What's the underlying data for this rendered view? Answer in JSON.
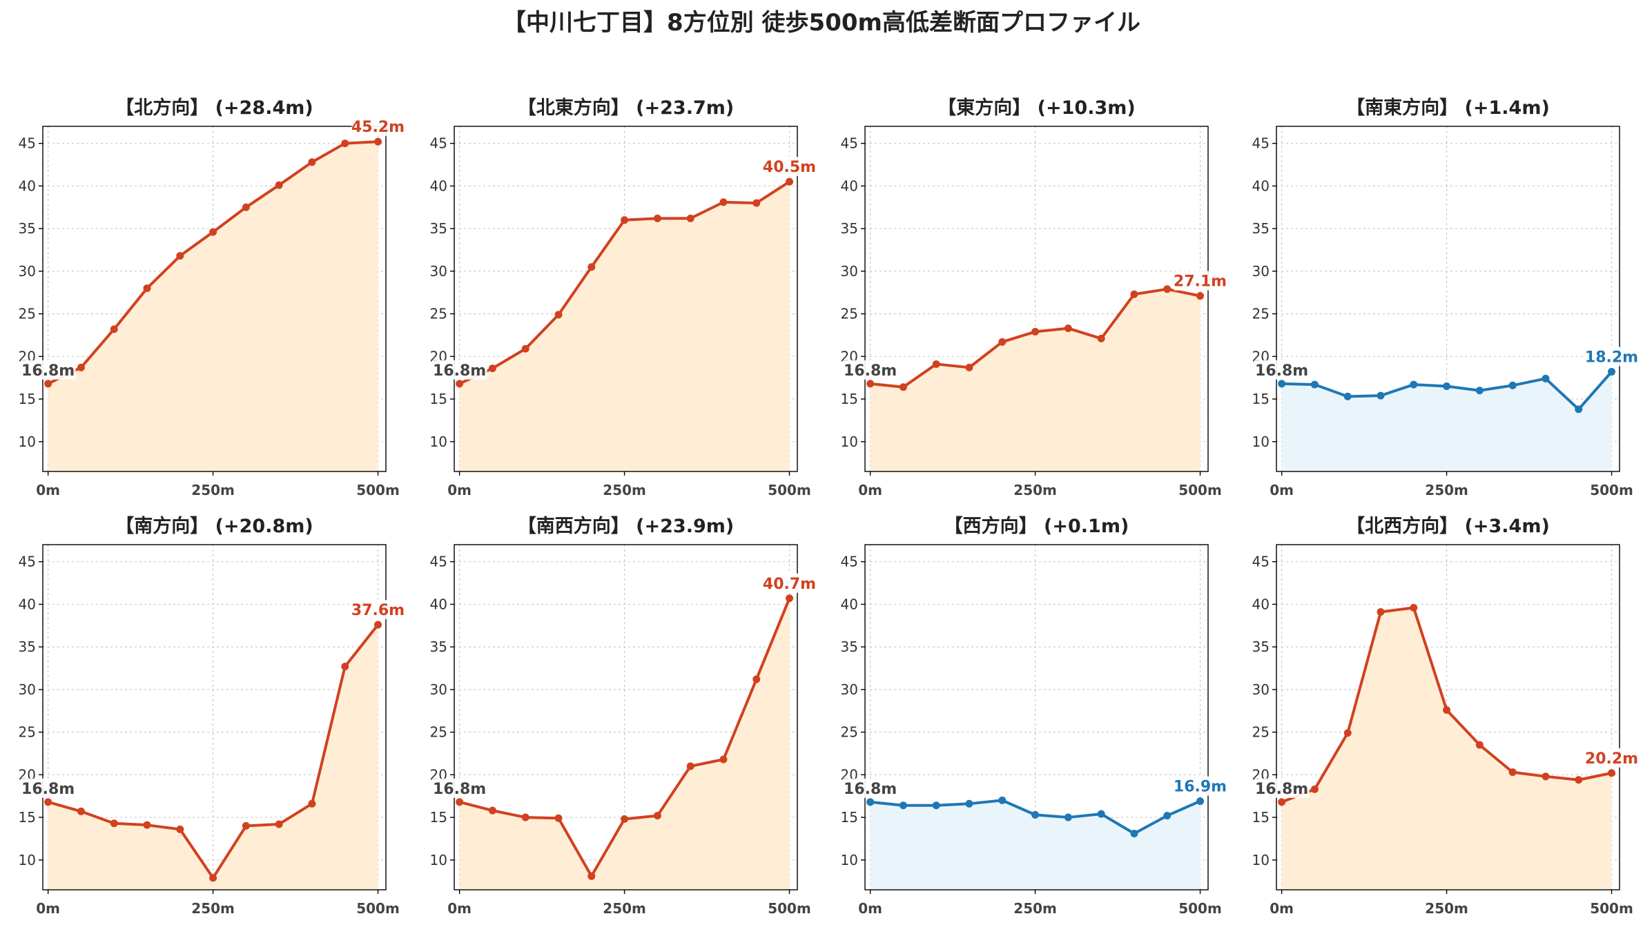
{
  "title": "【中川七丁目】8方位別 徒歩500m高低差断面プロファイル",
  "colors": {
    "up": "#D14120",
    "up_fill": "#FFEED5",
    "flat": "#1F77B4",
    "flat_fill": "#EAF5FB",
    "start_label": "#444444"
  },
  "chart_data": [
    {
      "type": "area",
      "title": "【北方向】 (+28.4m)",
      "x": [
        0,
        50,
        100,
        150,
        200,
        250,
        300,
        350,
        400,
        450,
        500
      ],
      "values": [
        16.8,
        18.7,
        23.2,
        28.0,
        31.8,
        34.6,
        37.5,
        40.1,
        42.8,
        45.0,
        45.2
      ],
      "start_label": "16.8m",
      "end_label": "45.2m",
      "color_key": "up",
      "xticks": [
        "0m",
        "250m",
        "500m"
      ],
      "yticks": [
        10,
        15,
        20,
        25,
        30,
        35,
        40,
        45
      ],
      "ylim": [
        6.5,
        47
      ],
      "xlim": [
        -8,
        512
      ],
      "grid": true
    },
    {
      "type": "area",
      "title": "【北東方向】 (+23.7m)",
      "x": [
        0,
        50,
        100,
        150,
        200,
        250,
        300,
        350,
        400,
        450,
        500
      ],
      "values": [
        16.8,
        18.6,
        20.9,
        24.9,
        30.5,
        36.0,
        36.2,
        36.2,
        38.1,
        38.0,
        40.5
      ],
      "start_label": "16.8m",
      "end_label": "40.5m",
      "color_key": "up",
      "xticks": [
        "0m",
        "250m",
        "500m"
      ],
      "yticks": [
        10,
        15,
        20,
        25,
        30,
        35,
        40,
        45
      ],
      "ylim": [
        6.5,
        47
      ],
      "xlim": [
        -8,
        512
      ],
      "grid": true
    },
    {
      "type": "area",
      "title": "【東方向】 (+10.3m)",
      "x": [
        0,
        50,
        100,
        150,
        200,
        250,
        300,
        350,
        400,
        450,
        500
      ],
      "values": [
        16.8,
        16.4,
        19.1,
        18.7,
        21.7,
        22.9,
        23.3,
        22.1,
        27.3,
        27.9,
        27.1
      ],
      "start_label": "16.8m",
      "end_label": "27.1m",
      "color_key": "up",
      "xticks": [
        "0m",
        "250m",
        "500m"
      ],
      "yticks": [
        10,
        15,
        20,
        25,
        30,
        35,
        40,
        45
      ],
      "ylim": [
        6.5,
        47
      ],
      "xlim": [
        -8,
        512
      ],
      "grid": true
    },
    {
      "type": "area",
      "title": "【南東方向】 (+1.4m)",
      "x": [
        0,
        50,
        100,
        150,
        200,
        250,
        300,
        350,
        400,
        450,
        500
      ],
      "values": [
        16.8,
        16.7,
        15.3,
        15.4,
        16.7,
        16.5,
        16.0,
        16.6,
        17.4,
        13.8,
        18.2
      ],
      "start_label": "16.8m",
      "end_label": "18.2m",
      "color_key": "flat",
      "xticks": [
        "0m",
        "250m",
        "500m"
      ],
      "yticks": [
        10,
        15,
        20,
        25,
        30,
        35,
        40,
        45
      ],
      "ylim": [
        6.5,
        47
      ],
      "xlim": [
        -8,
        512
      ],
      "grid": true
    },
    {
      "type": "area",
      "title": "【南方向】 (+20.8m)",
      "x": [
        0,
        50,
        100,
        150,
        200,
        250,
        300,
        350,
        400,
        450,
        500
      ],
      "values": [
        16.8,
        15.7,
        14.3,
        14.1,
        13.6,
        7.9,
        14.0,
        14.2,
        16.6,
        32.7,
        37.6
      ],
      "start_label": "16.8m",
      "end_label": "37.6m",
      "color_key": "up",
      "xticks": [
        "0m",
        "250m",
        "500m"
      ],
      "yticks": [
        10,
        15,
        20,
        25,
        30,
        35,
        40,
        45
      ],
      "ylim": [
        6.5,
        47
      ],
      "xlim": [
        -8,
        512
      ],
      "grid": true
    },
    {
      "type": "area",
      "title": "【南西方向】 (+23.9m)",
      "x": [
        0,
        50,
        100,
        150,
        200,
        250,
        300,
        350,
        400,
        450,
        500
      ],
      "values": [
        16.8,
        15.8,
        15.0,
        14.9,
        8.1,
        14.8,
        15.2,
        21.0,
        21.8,
        31.2,
        40.7
      ],
      "start_label": "16.8m",
      "end_label": "40.7m",
      "color_key": "up",
      "xticks": [
        "0m",
        "250m",
        "500m"
      ],
      "yticks": [
        10,
        15,
        20,
        25,
        30,
        35,
        40,
        45
      ],
      "ylim": [
        6.5,
        47
      ],
      "xlim": [
        -8,
        512
      ],
      "grid": true
    },
    {
      "type": "area",
      "title": "【西方向】 (+0.1m)",
      "x": [
        0,
        50,
        100,
        150,
        200,
        250,
        300,
        350,
        400,
        450,
        500
      ],
      "values": [
        16.8,
        16.4,
        16.4,
        16.6,
        17.0,
        15.3,
        15.0,
        15.4,
        13.1,
        15.2,
        16.9
      ],
      "start_label": "16.8m",
      "end_label": "16.9m",
      "color_key": "flat",
      "xticks": [
        "0m",
        "250m",
        "500m"
      ],
      "yticks": [
        10,
        15,
        20,
        25,
        30,
        35,
        40,
        45
      ],
      "ylim": [
        6.5,
        47
      ],
      "xlim": [
        -8,
        512
      ],
      "grid": true
    },
    {
      "type": "area",
      "title": "【北西方向】 (+3.4m)",
      "x": [
        0,
        50,
        100,
        150,
        200,
        250,
        300,
        350,
        400,
        450,
        500
      ],
      "values": [
        16.8,
        18.3,
        24.9,
        39.1,
        39.6,
        27.6,
        23.5,
        20.3,
        19.8,
        19.4,
        20.2
      ],
      "start_label": "16.8m",
      "end_label": "20.2m",
      "color_key": "up",
      "xticks": [
        "0m",
        "250m",
        "500m"
      ],
      "yticks": [
        10,
        15,
        20,
        25,
        30,
        35,
        40,
        45
      ],
      "ylim": [
        6.5,
        47
      ],
      "xlim": [
        -8,
        512
      ],
      "grid": true
    }
  ]
}
